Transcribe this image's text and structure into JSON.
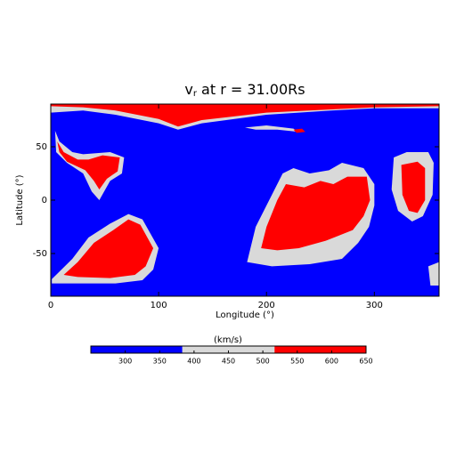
{
  "chart_data": {
    "type": "contour",
    "title": {
      "main": "v",
      "subscript": "r",
      "rest": " at r = 31.00Rs"
    },
    "x_label": "Longitude (°)",
    "y_label": "Latitude (°)",
    "xlim": [
      0,
      360
    ],
    "ylim": [
      -90,
      90
    ],
    "xticks": [
      0,
      100,
      200,
      300
    ],
    "yticks": [
      -50,
      0,
      50
    ],
    "colorbar_label": "(km/s)",
    "levels": [
      250,
      383,
      517,
      650
    ],
    "level_colors": [
      "#0000ff",
      "#d9d9d9",
      "#ff0000"
    ],
    "colorbar_lim": [
      250,
      650
    ],
    "colorbar_ticks": [
      300,
      350,
      400,
      450,
      500,
      550,
      600,
      650
    ],
    "regions": [
      {
        "value": 250,
        "points": [
          [
            0,
            90
          ],
          [
            360,
            90
          ],
          [
            360,
            -90
          ],
          [
            0,
            -90
          ]
        ]
      },
      {
        "value": 383,
        "points": [
          [
            0,
            90
          ],
          [
            360,
            90
          ],
          [
            360,
            86
          ],
          [
            300,
            86
          ],
          [
            260,
            84
          ],
          [
            200,
            80
          ],
          [
            140,
            72
          ],
          [
            118,
            66
          ],
          [
            100,
            72
          ],
          [
            60,
            80
          ],
          [
            30,
            84
          ],
          [
            0,
            82
          ]
        ]
      },
      {
        "value": 517,
        "points": [
          [
            0,
            90
          ],
          [
            360,
            90
          ],
          [
            360,
            88
          ],
          [
            300,
            87
          ],
          [
            260,
            85
          ],
          [
            200,
            82
          ],
          [
            140,
            75
          ],
          [
            118,
            69
          ],
          [
            100,
            76
          ],
          [
            60,
            84
          ],
          [
            30,
            87
          ],
          [
            0,
            88
          ]
        ]
      },
      {
        "value": 383,
        "points": [
          [
            180,
            68
          ],
          [
            200,
            70
          ],
          [
            225,
            67
          ],
          [
            230,
            64
          ],
          [
            210,
            66
          ],
          [
            190,
            66
          ]
        ]
      },
      {
        "value": 517,
        "points": [
          [
            225,
            66
          ],
          [
            233,
            67
          ],
          [
            236,
            64
          ],
          [
            228,
            63
          ]
        ]
      },
      {
        "value": 383,
        "points": [
          [
            4,
            65
          ],
          [
            8,
            55
          ],
          [
            20,
            45
          ],
          [
            30,
            43
          ],
          [
            55,
            45
          ],
          [
            68,
            40
          ],
          [
            66,
            25
          ],
          [
            55,
            18
          ],
          [
            45,
            0
          ],
          [
            38,
            8
          ],
          [
            30,
            25
          ],
          [
            15,
            35
          ],
          [
            5,
            45
          ]
        ]
      },
      {
        "value": 517,
        "points": [
          [
            6,
            55
          ],
          [
            12,
            45
          ],
          [
            25,
            38
          ],
          [
            35,
            38
          ],
          [
            48,
            42
          ],
          [
            64,
            40
          ],
          [
            62,
            27
          ],
          [
            52,
            20
          ],
          [
            45,
            10
          ],
          [
            40,
            18
          ],
          [
            32,
            28
          ],
          [
            15,
            36
          ],
          [
            8,
            45
          ]
        ]
      },
      {
        "value": 383,
        "points": [
          [
            1,
            -74
          ],
          [
            20,
            -55
          ],
          [
            35,
            -35
          ],
          [
            55,
            -22
          ],
          [
            72,
            -13
          ],
          [
            85,
            -18
          ],
          [
            100,
            -45
          ],
          [
            95,
            -65
          ],
          [
            85,
            -75
          ],
          [
            60,
            -78
          ],
          [
            30,
            -78
          ],
          [
            1,
            -78
          ]
        ]
      },
      {
        "value": 517,
        "points": [
          [
            12,
            -70
          ],
          [
            25,
            -58
          ],
          [
            40,
            -40
          ],
          [
            58,
            -28
          ],
          [
            72,
            -18
          ],
          [
            83,
            -23
          ],
          [
            95,
            -45
          ],
          [
            88,
            -62
          ],
          [
            78,
            -70
          ],
          [
            55,
            -73
          ],
          [
            25,
            -72
          ]
        ]
      },
      {
        "value": 383,
        "points": [
          [
            182,
            -58
          ],
          [
            190,
            -25
          ],
          [
            205,
            5
          ],
          [
            215,
            25
          ],
          [
            225,
            30
          ],
          [
            240,
            25
          ],
          [
            258,
            28
          ],
          [
            270,
            35
          ],
          [
            290,
            30
          ],
          [
            300,
            15
          ],
          [
            300,
            -5
          ],
          [
            295,
            -25
          ],
          [
            285,
            -40
          ],
          [
            270,
            -55
          ],
          [
            240,
            -60
          ],
          [
            205,
            -62
          ]
        ]
      },
      {
        "value": 517,
        "points": [
          [
            195,
            -45
          ],
          [
            200,
            -25
          ],
          [
            210,
            0
          ],
          [
            218,
            15
          ],
          [
            235,
            12
          ],
          [
            250,
            18
          ],
          [
            262,
            15
          ],
          [
            275,
            22
          ],
          [
            293,
            22
          ],
          [
            296,
            0
          ],
          [
            290,
            -15
          ],
          [
            280,
            -28
          ],
          [
            255,
            -38
          ],
          [
            230,
            -45
          ],
          [
            210,
            -47
          ]
        ]
      },
      {
        "value": 383,
        "points": [
          [
            318,
            40
          ],
          [
            330,
            45
          ],
          [
            350,
            45
          ],
          [
            355,
            35
          ],
          [
            354,
            5
          ],
          [
            345,
            -15
          ],
          [
            335,
            -20
          ],
          [
            322,
            -10
          ],
          [
            316,
            10
          ]
        ]
      },
      {
        "value": 517,
        "points": [
          [
            325,
            33
          ],
          [
            340,
            36
          ],
          [
            347,
            30
          ],
          [
            347,
            0
          ],
          [
            340,
            -12
          ],
          [
            332,
            -10
          ],
          [
            326,
            5
          ]
        ]
      },
      {
        "value": 383,
        "points": [
          [
            350,
            -62
          ],
          [
            360,
            -58
          ],
          [
            360,
            -80
          ],
          [
            352,
            -80
          ]
        ]
      }
    ]
  }
}
